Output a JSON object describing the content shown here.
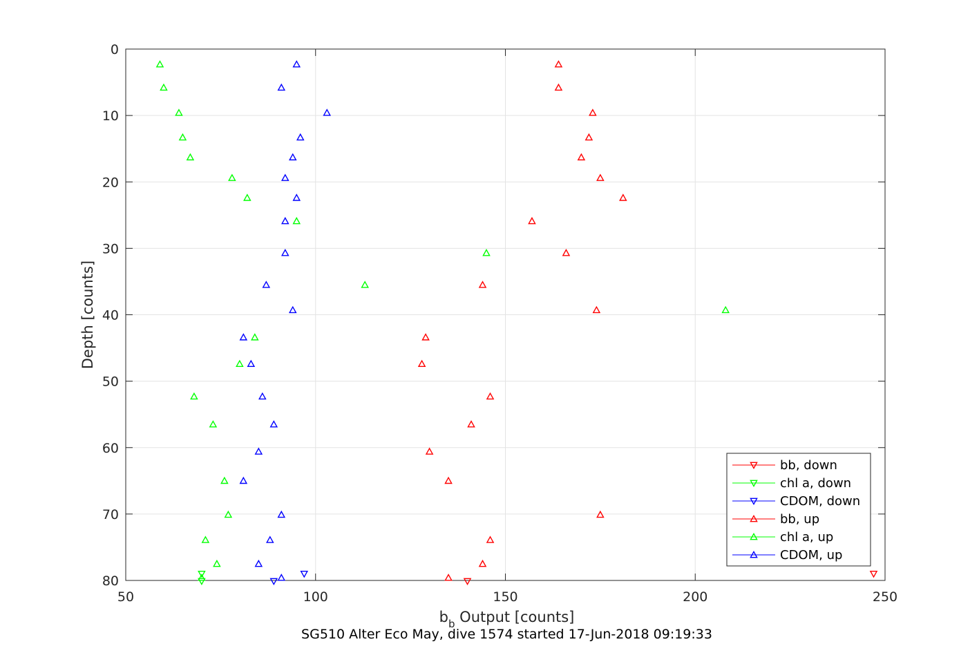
{
  "chart_data": {
    "type": "scatter",
    "title": "",
    "xlabel": {
      "main": "b",
      "subscript": "b",
      "rest": " Output [counts]"
    },
    "ylabel": "Depth [counts]",
    "caption": "SG510 Alter Eco May, dive 1574 started 17-Jun-2018 09:19:33",
    "xlim": [
      50,
      250
    ],
    "ylim": [
      0,
      80
    ],
    "y_reversed": true,
    "grid": true,
    "xticks": [
      50,
      100,
      150,
      200,
      250
    ],
    "yticks": [
      0,
      10,
      20,
      30,
      40,
      50,
      60,
      70,
      80
    ],
    "legend_position": "bottom-right",
    "series": [
      {
        "name": "bb, down",
        "color": "#ff0000",
        "marker": "triangle-down",
        "points": [
          {
            "x": 247,
            "y": 79
          },
          {
            "x": 140,
            "y": 80.1
          }
        ]
      },
      {
        "name": "chl a, down",
        "color": "#00ff00",
        "marker": "triangle-down",
        "points": [
          {
            "x": 70,
            "y": 79
          },
          {
            "x": 70,
            "y": 80.1
          }
        ]
      },
      {
        "name": "CDOM, down",
        "color": "#0000ff",
        "marker": "triangle-down",
        "points": [
          {
            "x": 97,
            "y": 79
          },
          {
            "x": 89,
            "y": 80.1
          }
        ]
      },
      {
        "name": "bb, up",
        "color": "#ff0000",
        "marker": "triangle-up",
        "points": [
          {
            "x": 164,
            "y": 2.3
          },
          {
            "x": 164,
            "y": 5.8
          },
          {
            "x": 173,
            "y": 9.6
          },
          {
            "x": 172,
            "y": 13.3
          },
          {
            "x": 170,
            "y": 16.3
          },
          {
            "x": 175,
            "y": 19.4
          },
          {
            "x": 181,
            "y": 22.4
          },
          {
            "x": 157,
            "y": 25.9
          },
          {
            "x": 166,
            "y": 30.7
          },
          {
            "x": 144,
            "y": 35.5
          },
          {
            "x": 174,
            "y": 39.3
          },
          {
            "x": 129,
            "y": 43.4
          },
          {
            "x": 128,
            "y": 47.4
          },
          {
            "x": 146,
            "y": 52.3
          },
          {
            "x": 141,
            "y": 56.5
          },
          {
            "x": 130,
            "y": 60.6
          },
          {
            "x": 135,
            "y": 65.0
          },
          {
            "x": 175,
            "y": 70.1
          },
          {
            "x": 146,
            "y": 73.9
          },
          {
            "x": 144,
            "y": 77.5
          },
          {
            "x": 135,
            "y": 79.6
          }
        ]
      },
      {
        "name": "chl a, up",
        "color": "#00ff00",
        "marker": "triangle-up",
        "points": [
          {
            "x": 59,
            "y": 2.3
          },
          {
            "x": 60,
            "y": 5.8
          },
          {
            "x": 64,
            "y": 9.6
          },
          {
            "x": 65,
            "y": 13.3
          },
          {
            "x": 67,
            "y": 16.3
          },
          {
            "x": 78,
            "y": 19.4
          },
          {
            "x": 82,
            "y": 22.4
          },
          {
            "x": 95,
            "y": 25.9
          },
          {
            "x": 145,
            "y": 30.7
          },
          {
            "x": 113,
            "y": 35.5
          },
          {
            "x": 208,
            "y": 39.3
          },
          {
            "x": 84,
            "y": 43.4
          },
          {
            "x": 80,
            "y": 47.4
          },
          {
            "x": 68,
            "y": 52.3
          },
          {
            "x": 73,
            "y": 56.5
          },
          {
            "x": 76,
            "y": 65.0
          },
          {
            "x": 77,
            "y": 70.1
          },
          {
            "x": 71,
            "y": 73.9
          },
          {
            "x": 74,
            "y": 77.5
          },
          {
            "x": 70,
            "y": 79.6
          }
        ]
      },
      {
        "name": "CDOM, up",
        "color": "#0000ff",
        "marker": "triangle-up",
        "points": [
          {
            "x": 95,
            "y": 2.3
          },
          {
            "x": 91,
            "y": 5.8
          },
          {
            "x": 103,
            "y": 9.6
          },
          {
            "x": 96,
            "y": 13.3
          },
          {
            "x": 94,
            "y": 16.3
          },
          {
            "x": 92,
            "y": 19.4
          },
          {
            "x": 95,
            "y": 22.4
          },
          {
            "x": 92,
            "y": 25.9
          },
          {
            "x": 92,
            "y": 30.7
          },
          {
            "x": 87,
            "y": 35.5
          },
          {
            "x": 94,
            "y": 39.3
          },
          {
            "x": 81,
            "y": 43.4
          },
          {
            "x": 83,
            "y": 47.4
          },
          {
            "x": 86,
            "y": 52.3
          },
          {
            "x": 89,
            "y": 56.5
          },
          {
            "x": 85,
            "y": 60.6
          },
          {
            "x": 81,
            "y": 65.0
          },
          {
            "x": 91,
            "y": 70.1
          },
          {
            "x": 88,
            "y": 73.9
          },
          {
            "x": 85,
            "y": 77.5
          },
          {
            "x": 91,
            "y": 79.6
          }
        ]
      }
    ]
  }
}
